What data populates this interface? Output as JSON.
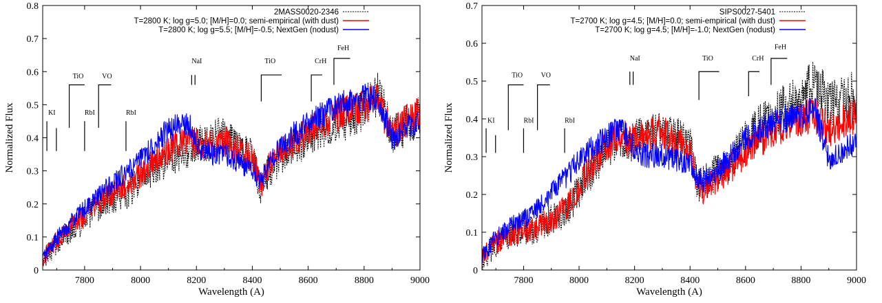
{
  "colors": {
    "observed": "#000000",
    "semi_empirical": "#ff0000",
    "nextgen": "#0000ff"
  },
  "chart_data": [
    {
      "type": "line",
      "title": "",
      "xlabel": "Wavelength (A)",
      "ylabel": "Normalized Flux",
      "xlim": [
        7650,
        9000
      ],
      "ylim": [
        0,
        0.8
      ],
      "xticks": [
        7800,
        8000,
        8200,
        8400,
        8600,
        8800,
        9000
      ],
      "yticks": [
        0,
        0.1,
        0.2,
        0.3,
        0.4,
        0.5,
        0.6,
        0.7,
        0.8
      ],
      "legend_position": "top-right",
      "grid": false,
      "series": [
        {
          "name": "2MASS0020-2346",
          "style": "dotted",
          "color": "#000000",
          "x": [
            7650,
            7700,
            7750,
            7800,
            7850,
            7900,
            7950,
            8000,
            8050,
            8100,
            8150,
            8180,
            8200,
            8250,
            8300,
            8350,
            8400,
            8430,
            8450,
            8500,
            8550,
            8600,
            8650,
            8700,
            8750,
            8800,
            8850,
            8900,
            8950,
            9000
          ],
          "y": [
            0.03,
            0.09,
            0.13,
            0.16,
            0.2,
            0.23,
            0.24,
            0.28,
            0.32,
            0.35,
            0.37,
            0.38,
            0.4,
            0.4,
            0.42,
            0.38,
            0.36,
            0.25,
            0.3,
            0.35,
            0.38,
            0.41,
            0.44,
            0.46,
            0.47,
            0.5,
            0.55,
            0.42,
            0.45,
            0.48
          ]
        },
        {
          "name": "T=2800 K; log g=5.0; [M/H]=0.0; semi-empirical (with dust)",
          "style": "solid",
          "color": "#ff0000",
          "x": [
            7650,
            7700,
            7750,
            7800,
            7850,
            7900,
            7950,
            8000,
            8050,
            8100,
            8150,
            8180,
            8200,
            8250,
            8300,
            8350,
            8400,
            8430,
            8450,
            8500,
            8550,
            8600,
            8650,
            8700,
            8750,
            8800,
            8850,
            8900,
            8950,
            9000
          ],
          "y": [
            0.04,
            0.1,
            0.14,
            0.17,
            0.21,
            0.24,
            0.26,
            0.3,
            0.34,
            0.37,
            0.39,
            0.4,
            0.39,
            0.39,
            0.4,
            0.37,
            0.35,
            0.26,
            0.31,
            0.37,
            0.4,
            0.43,
            0.46,
            0.48,
            0.49,
            0.51,
            0.52,
            0.42,
            0.46,
            0.49
          ]
        },
        {
          "name": "T=2800 K; log g=5.5; [M/H]=-0.5; NextGen (nodust)",
          "style": "solid",
          "color": "#0000ff",
          "x": [
            7650,
            7700,
            7750,
            7800,
            7850,
            7900,
            7950,
            8000,
            8050,
            8100,
            8150,
            8180,
            8200,
            8250,
            8300,
            8350,
            8400,
            8430,
            8450,
            8500,
            8550,
            8600,
            8650,
            8700,
            8750,
            8800,
            8850,
            8900,
            8950,
            9000
          ],
          "y": [
            0.04,
            0.1,
            0.15,
            0.19,
            0.23,
            0.27,
            0.3,
            0.34,
            0.39,
            0.43,
            0.45,
            0.44,
            0.38,
            0.36,
            0.36,
            0.33,
            0.31,
            0.27,
            0.32,
            0.38,
            0.42,
            0.45,
            0.48,
            0.5,
            0.52,
            0.53,
            0.53,
            0.4,
            0.44,
            0.45
          ]
        }
      ],
      "features": [
        {
          "label": "KI",
          "x": 7665,
          "x2": 7699,
          "top": 0.45,
          "bottom": 0.36,
          "label_y": 0.47
        },
        {
          "label": "TiO",
          "x": 7745,
          "x2": 7800,
          "top": 0.56,
          "bottom": 0.43,
          "label_y": 0.58
        },
        {
          "label": "VO",
          "x": 7850,
          "x2": 7895,
          "top": 0.56,
          "bottom": 0.43,
          "label_y": 0.58
        },
        {
          "label": "RbI",
          "x": 7800,
          "top": 0.45,
          "bottom": 0.36,
          "label_y": 0.47
        },
        {
          "label": "RbI",
          "x": 7948,
          "top": 0.45,
          "bottom": 0.36,
          "label_y": 0.47
        },
        {
          "label": "NaI",
          "x": 8183,
          "x2": 8195,
          "top": 0.59,
          "bottom": 0.56,
          "label_y": 0.625
        },
        {
          "label": "TiO",
          "x": 8432,
          "x2": 8505,
          "top": 0.59,
          "bottom": 0.51,
          "label_y": 0.625
        },
        {
          "label": "CrH",
          "x": 8611,
          "x2": 8650,
          "top": 0.59,
          "bottom": 0.51,
          "label_y": 0.625
        },
        {
          "label": "FeH",
          "x": 8692,
          "x2": 8750,
          "top": 0.64,
          "bottom": 0.56,
          "label_y": 0.665
        }
      ]
    },
    {
      "type": "line",
      "title": "",
      "xlabel": "Wavelength (A)",
      "ylabel": "Normalized Flux",
      "xlim": [
        7650,
        9000
      ],
      "ylim": [
        0,
        0.7
      ],
      "xticks": [
        7800,
        8000,
        8200,
        8400,
        8600,
        8800,
        9000
      ],
      "yticks": [
        0,
        0.1,
        0.2,
        0.3,
        0.4,
        0.5,
        0.6,
        0.7
      ],
      "legend_position": "top-right",
      "grid": false,
      "series": [
        {
          "name": "SIPS0027-5401",
          "style": "dotted",
          "color": "#000000",
          "x": [
            7650,
            7700,
            7750,
            7800,
            7850,
            7900,
            7950,
            8000,
            8050,
            8100,
            8150,
            8180,
            8200,
            8250,
            8300,
            8350,
            8400,
            8430,
            8450,
            8500,
            8550,
            8600,
            8650,
            8700,
            8750,
            8800,
            8850,
            8900,
            8950,
            9000
          ],
          "y": [
            0.03,
            0.08,
            0.1,
            0.11,
            0.12,
            0.14,
            0.16,
            0.22,
            0.28,
            0.33,
            0.36,
            0.34,
            0.35,
            0.38,
            0.38,
            0.36,
            0.34,
            0.23,
            0.24,
            0.27,
            0.3,
            0.35,
            0.39,
            0.42,
            0.45,
            0.47,
            0.52,
            0.45,
            0.46,
            0.48
          ]
        },
        {
          "name": "T=2700 K; log g=4.5; [M/H]=0.0; semi-empirical (with dust)",
          "style": "solid",
          "color": "#ff0000",
          "x": [
            7650,
            7700,
            7750,
            7800,
            7850,
            7900,
            7950,
            8000,
            8050,
            8100,
            8150,
            8180,
            8200,
            8250,
            8300,
            8350,
            8400,
            8430,
            8450,
            8500,
            8550,
            8600,
            8650,
            8700,
            8750,
            8800,
            8850,
            8900,
            8950,
            9000
          ],
          "y": [
            0.04,
            0.08,
            0.1,
            0.11,
            0.12,
            0.14,
            0.17,
            0.23,
            0.29,
            0.34,
            0.37,
            0.35,
            0.35,
            0.37,
            0.37,
            0.35,
            0.33,
            0.22,
            0.22,
            0.25,
            0.28,
            0.32,
            0.35,
            0.38,
            0.4,
            0.41,
            0.42,
            0.38,
            0.4,
            0.42
          ]
        },
        {
          "name": "T=2700 K; log g=4.5; [M/H]=-1.0; NextGen (nodust)",
          "style": "solid",
          "color": "#0000ff",
          "x": [
            7650,
            7700,
            7750,
            7800,
            7850,
            7900,
            7950,
            8000,
            8050,
            8100,
            8150,
            8180,
            8200,
            8250,
            8300,
            8350,
            8400,
            8430,
            8450,
            8500,
            8550,
            8600,
            8650,
            8700,
            8750,
            8800,
            8850,
            8900,
            8950,
            9000
          ],
          "y": [
            0.04,
            0.09,
            0.12,
            0.14,
            0.17,
            0.21,
            0.25,
            0.3,
            0.33,
            0.36,
            0.38,
            0.36,
            0.32,
            0.31,
            0.31,
            0.3,
            0.29,
            0.25,
            0.24,
            0.27,
            0.31,
            0.35,
            0.38,
            0.4,
            0.41,
            0.42,
            0.43,
            0.3,
            0.32,
            0.35
          ]
        }
      ],
      "features": [
        {
          "label": "KI",
          "x": 7665,
          "x2": 7699,
          "top": 0.375,
          "bottom": 0.31,
          "label_y": 0.39
        },
        {
          "label": "TiO",
          "x": 7745,
          "x2": 7800,
          "top": 0.49,
          "bottom": 0.37,
          "label_y": 0.51
        },
        {
          "label": "VO",
          "x": 7850,
          "x2": 7895,
          "top": 0.49,
          "bottom": 0.37,
          "label_y": 0.51
        },
        {
          "label": "RbI",
          "x": 7800,
          "top": 0.375,
          "bottom": 0.31,
          "label_y": 0.39
        },
        {
          "label": "RbI",
          "x": 7948,
          "top": 0.375,
          "bottom": 0.31,
          "label_y": 0.39
        },
        {
          "label": "NaI",
          "x": 8183,
          "x2": 8195,
          "top": 0.525,
          "bottom": 0.49,
          "label_y": 0.555
        },
        {
          "label": "TiO",
          "x": 8432,
          "x2": 8505,
          "top": 0.525,
          "bottom": 0.45,
          "label_y": 0.555
        },
        {
          "label": "CrH",
          "x": 8611,
          "x2": 8650,
          "top": 0.525,
          "bottom": 0.46,
          "label_y": 0.555
        },
        {
          "label": "FeH",
          "x": 8692,
          "x2": 8750,
          "top": 0.56,
          "bottom": 0.49,
          "label_y": 0.585
        }
      ]
    }
  ]
}
